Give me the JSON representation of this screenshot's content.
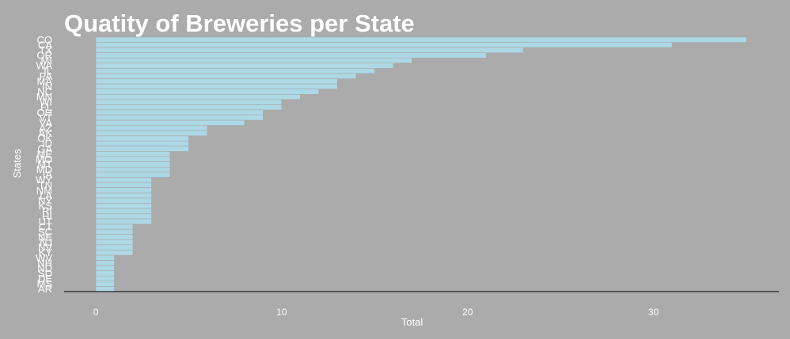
{
  "chart_data": {
    "type": "bar",
    "orientation": "horizontal",
    "title": "Quatity of Breweries per State",
    "xlabel": "Total",
    "ylabel": "States",
    "xlim": [
      0,
      35
    ],
    "x_ticks": [
      0,
      10,
      20,
      30
    ],
    "grid": false,
    "bar_color": "#add8e6",
    "background_color": "#ababab",
    "categories": [
      "CO",
      "CA",
      "TX",
      "OR",
      "MI",
      "WA",
      "IL",
      "PA",
      "MA",
      "IN",
      "NC",
      "MN",
      "WI",
      "FL",
      "OH",
      "VT",
      "VA",
      "AZ",
      "AK",
      "OK",
      "ID",
      "GA",
      "ME",
      "MO",
      "MT",
      "MD",
      "IA",
      "WY",
      "TN",
      "NM",
      "LA",
      "NY",
      "KS",
      "RI",
      "HI",
      "UT",
      "CT",
      "SC",
      "NE",
      "NJ",
      "NV",
      "KY",
      "WV",
      "NH",
      "ND",
      "SD",
      "DE",
      "MS",
      "AR"
    ],
    "values": [
      35,
      31,
      23,
      21,
      17,
      16,
      15,
      14,
      13,
      13,
      12,
      11,
      10,
      10,
      9,
      9,
      8,
      6,
      6,
      5,
      5,
      5,
      4,
      4,
      4,
      4,
      4,
      3,
      3,
      3,
      3,
      3,
      3,
      3,
      3,
      3,
      2,
      2,
      2,
      2,
      2,
      2,
      1,
      1,
      1,
      1,
      1,
      1,
      1
    ]
  }
}
